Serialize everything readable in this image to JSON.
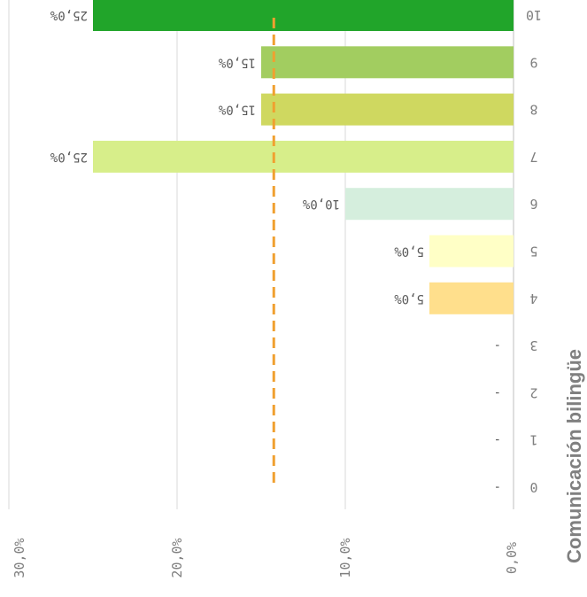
{
  "chart_data": {
    "type": "bar",
    "orientation": "horizontal",
    "title": "",
    "ylabel": "Comunicación bilingüe",
    "xlabel": "",
    "categories": [
      "0",
      "1",
      "2",
      "3",
      "4",
      "5",
      "6",
      "7",
      "8",
      "9",
      "10"
    ],
    "values": [
      0,
      0,
      0,
      0,
      5.0,
      5.0,
      10.0,
      25.0,
      15.0,
      15.0,
      25.0
    ],
    "data_labels": [
      "-",
      "-",
      "-",
      "-",
      "5,0%",
      "5,0%",
      "10,0%",
      "25,0%",
      "15,0%",
      "15,0%",
      "25,0%"
    ],
    "bar_colors": [
      "#ffffff",
      "#ffffff",
      "#ffffff",
      "#ffffff",
      "#ffdf8c",
      "#ffffc6",
      "#d5eedd",
      "#d7ee8a",
      "#cfd860",
      "#a2cd60",
      "#21a52a"
    ],
    "xlim": [
      0,
      30
    ],
    "x_ticks": [
      0,
      10,
      20,
      30
    ],
    "x_tick_labels": [
      "0,0%",
      "10,0%",
      "20,0%",
      "30,0%"
    ],
    "reference_line": {
      "value": 14.25,
      "color": "#f0a030",
      "style": "dashed"
    },
    "grid": true,
    "legend": "none"
  }
}
